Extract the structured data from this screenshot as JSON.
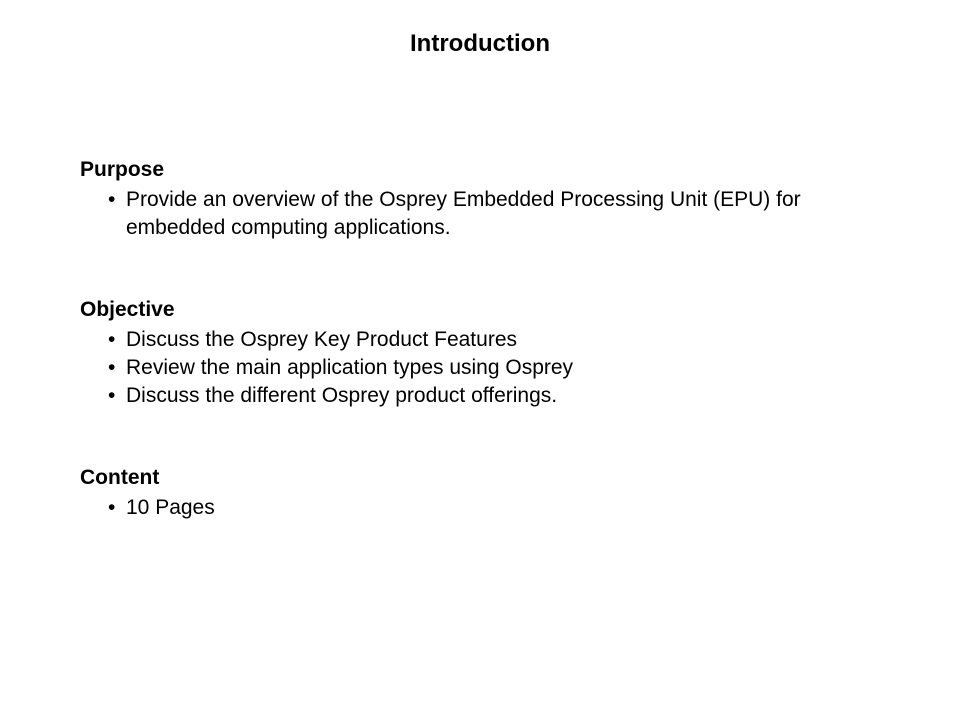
{
  "title": "Introduction",
  "sections": [
    {
      "heading": "Purpose",
      "items": [
        "Provide an overview of the Osprey Embedded Processing Unit (EPU) for embedded computing applications."
      ]
    },
    {
      "heading": "Objective",
      "items": [
        "Discuss the Osprey Key Product Features",
        "Review the main application types using Osprey",
        "Discuss the different Osprey product offerings."
      ]
    },
    {
      "heading": "Content",
      "items": [
        "10 Pages"
      ]
    }
  ],
  "colors": {
    "background": "#ffffff",
    "text": "#000000"
  },
  "typography": {
    "title_fontsize": 24,
    "heading_fontsize": 21,
    "body_fontsize": 21,
    "font_family": "Verdana"
  }
}
